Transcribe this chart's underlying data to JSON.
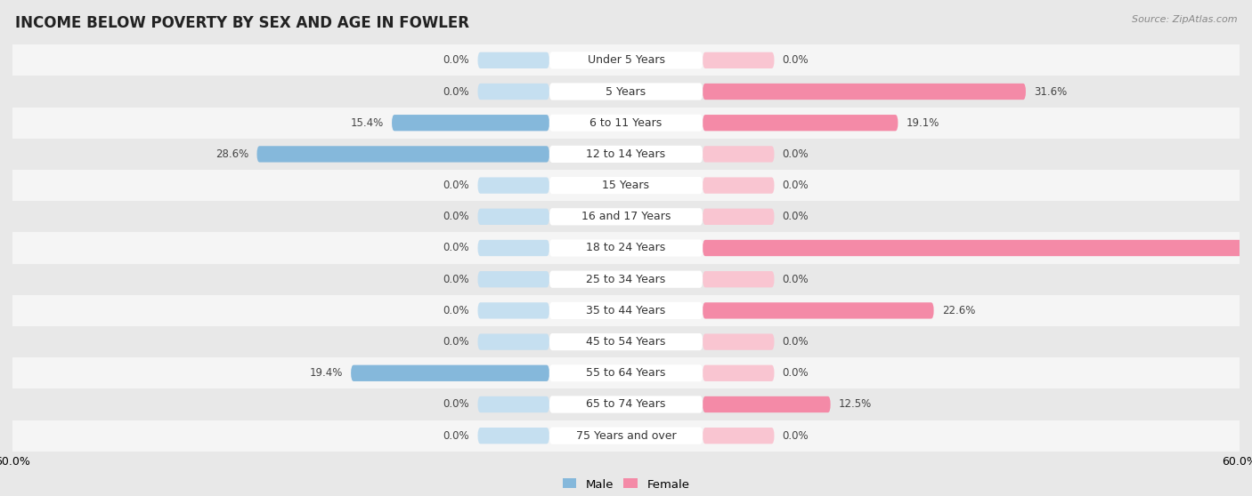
{
  "title": "INCOME BELOW POVERTY BY SEX AND AGE IN FOWLER",
  "source": "Source: ZipAtlas.com",
  "categories": [
    "Under 5 Years",
    "5 Years",
    "6 to 11 Years",
    "12 to 14 Years",
    "15 Years",
    "16 and 17 Years",
    "18 to 24 Years",
    "25 to 34 Years",
    "35 to 44 Years",
    "45 to 54 Years",
    "55 to 64 Years",
    "65 to 74 Years",
    "75 Years and over"
  ],
  "male": [
    0.0,
    0.0,
    15.4,
    28.6,
    0.0,
    0.0,
    0.0,
    0.0,
    0.0,
    0.0,
    19.4,
    0.0,
    0.0
  ],
  "female": [
    0.0,
    31.6,
    19.1,
    0.0,
    0.0,
    0.0,
    57.1,
    0.0,
    22.6,
    0.0,
    0.0,
    12.5,
    0.0
  ],
  "male_color": "#85b8db",
  "female_color": "#f48aa7",
  "male_color_light": "#c5dff0",
  "female_color_light": "#f9c5d1",
  "male_label": "Male",
  "female_label": "Female",
  "axis_max": 60.0,
  "stub_size": 7.0,
  "background_color": "#e8e8e8",
  "row_bg_even": "#f5f5f5",
  "row_bg_odd": "#e8e8e8",
  "bar_height": 0.52,
  "title_fontsize": 12,
  "label_fontsize": 9,
  "value_fontsize": 8.5,
  "legend_fontsize": 9.5,
  "source_fontsize": 8
}
